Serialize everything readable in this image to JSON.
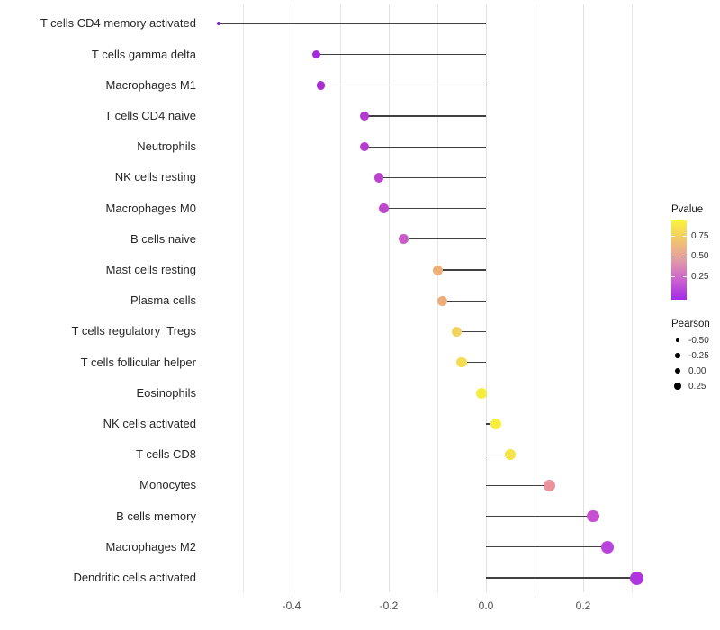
{
  "chart_data": {
    "type": "scatter",
    "subtype": "lollipop",
    "title": "",
    "xlabel": "",
    "ylabel": "",
    "grid": true,
    "xlim": [
      -0.589,
      0.352
    ],
    "gridline_values": [
      -0.5,
      -0.4,
      -0.3,
      -0.2,
      -0.1,
      0.0,
      0.1,
      0.2,
      0.3
    ],
    "x_ticks": [
      {
        "label": "-0.4",
        "value": -0.4
      },
      {
        "label": "-0.2",
        "value": -0.2
      },
      {
        "label": "0.0",
        "value": 0.0
      },
      {
        "label": "0.2",
        "value": 0.2
      }
    ],
    "series_note": "each point: cell type, Pearson correlation (x), dot color encodes Pvalue, dot size encodes Pearson",
    "points": [
      {
        "label": "T cells CD4 memory activated",
        "pearson": -0.55,
        "color": "#7a22c8",
        "size": 4
      },
      {
        "label": "T cells gamma delta",
        "pearson": -0.35,
        "color": "#a32cd4",
        "size": 9
      },
      {
        "label": "Macrophages M1",
        "pearson": -0.34,
        "color": "#a82ed3",
        "size": 9.5
      },
      {
        "label": "T cells CD4 naive",
        "pearson": -0.25,
        "color": "#b338d2",
        "size": 10
      },
      {
        "label": "Neutrophils",
        "pearson": -0.25,
        "color": "#b73bd0",
        "size": 10
      },
      {
        "label": "NK cells resting",
        "pearson": -0.22,
        "color": "#bb41cf",
        "size": 10.5
      },
      {
        "label": "Macrophages M0",
        "pearson": -0.21,
        "color": "#bf47cd",
        "size": 10.5
      },
      {
        "label": "B cells naive",
        "pearson": -0.17,
        "color": "#c85cc6",
        "size": 11
      },
      {
        "label": "Mast cells resting",
        "pearson": -0.1,
        "color": "#efb078",
        "size": 11
      },
      {
        "label": "Plasma cells",
        "pearson": -0.09,
        "color": "#eeac79",
        "size": 11
      },
      {
        "label": "T cells regulatory  Tregs",
        "pearson": -0.06,
        "color": "#f2d35f",
        "size": 11.5
      },
      {
        "label": "T cells follicular helper",
        "pearson": -0.05,
        "color": "#f4dc52",
        "size": 11.5
      },
      {
        "label": "Eosinophils",
        "pearson": -0.01,
        "color": "#f7ed3d",
        "size": 12
      },
      {
        "label": "NK cells activated",
        "pearson": 0.02,
        "color": "#f7ee3c",
        "size": 12
      },
      {
        "label": "T cells CD8",
        "pearson": 0.05,
        "color": "#f5e444",
        "size": 12.5
      },
      {
        "label": "Monocytes",
        "pearson": 0.13,
        "color": "#e9939c",
        "size": 13
      },
      {
        "label": "B cells memory",
        "pearson": 0.22,
        "color": "#c551cf",
        "size": 13.5
      },
      {
        "label": "Macrophages M2",
        "pearson": 0.25,
        "color": "#bb42da",
        "size": 14
      },
      {
        "label": "Dendritic cells activated",
        "pearson": 0.31,
        "color": "#ae35e0",
        "size": 15
      }
    ],
    "segment_color": "#404040",
    "legend_position": "right"
  },
  "legend_pvalue": {
    "title": "Pvalue",
    "tick_labels": [
      "0.75",
      "0.50",
      "0.25"
    ],
    "tick_values": [
      0.75,
      0.5,
      0.25
    ],
    "range": [
      0.94,
      -0.04
    ],
    "gradient_stops": [
      "#faf33c",
      "#f2c56e",
      "#e19ca6",
      "#cb63d0",
      "#a32be8"
    ]
  },
  "legend_pearson": {
    "title": "Pearson",
    "items": [
      {
        "label": "-0.50",
        "size": 3.5
      },
      {
        "label": "-0.25",
        "size": 5.5
      },
      {
        "label": "0.00",
        "size": 6.5
      },
      {
        "label": "0.25",
        "size": 7.5
      }
    ],
    "dot_color": "#000000"
  }
}
